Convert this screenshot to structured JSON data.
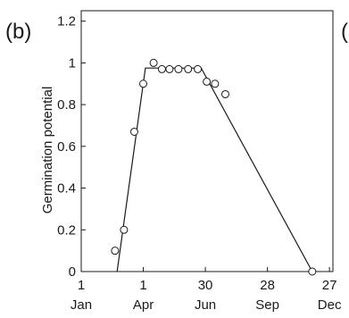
{
  "panel_label": "(b)",
  "right_edge_fragment": "(",
  "chart_data": {
    "type": "scatter",
    "title": "",
    "ylabel": "Germination potential",
    "xlabel": "",
    "ylim": [
      0,
      1.25
    ],
    "xlim": [
      1,
      366
    ],
    "yticks": [
      {
        "value": 0,
        "label": "0"
      },
      {
        "value": 0.2,
        "label": "0.2"
      },
      {
        "value": 0.4,
        "label": "0.4"
      },
      {
        "value": 0.6,
        "label": "0.6"
      },
      {
        "value": 0.8,
        "label": "0.8"
      },
      {
        "value": 1,
        "label": "1"
      },
      {
        "value": 1.2,
        "label": "1.2"
      }
    ],
    "xticks": [
      {
        "value": 1,
        "day_label": "1",
        "month_label": "Jan"
      },
      {
        "value": 91,
        "day_label": "1",
        "month_label": "Apr"
      },
      {
        "value": 181,
        "day_label": "30",
        "month_label": "Jun"
      },
      {
        "value": 271,
        "day_label": "28",
        "month_label": "Sep"
      },
      {
        "value": 361,
        "day_label": "27",
        "month_label": "Dec"
      }
    ],
    "observed_points": [
      {
        "x": 50,
        "y": 0.1
      },
      {
        "x": 63,
        "y": 0.2
      },
      {
        "x": 78,
        "y": 0.67
      },
      {
        "x": 91,
        "y": 0.9
      },
      {
        "x": 106,
        "y": 1.0
      },
      {
        "x": 118,
        "y": 0.97
      },
      {
        "x": 129,
        "y": 0.97
      },
      {
        "x": 142,
        "y": 0.97
      },
      {
        "x": 156,
        "y": 0.97
      },
      {
        "x": 170,
        "y": 0.97
      },
      {
        "x": 183,
        "y": 0.91
      },
      {
        "x": 195,
        "y": 0.9
      },
      {
        "x": 210,
        "y": 0.85
      },
      {
        "x": 336,
        "y": 0.0
      }
    ],
    "fitted_line": [
      {
        "x": 53,
        "y": 0.0
      },
      {
        "x": 94,
        "y": 0.975
      },
      {
        "x": 175,
        "y": 0.975
      },
      {
        "x": 336,
        "y": 0.0
      }
    ],
    "grid": false,
    "marker": "open-circle",
    "color": "#1a1a1a"
  }
}
